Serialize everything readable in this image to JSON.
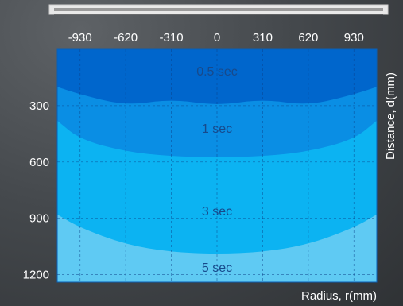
{
  "fixture_icon": "ceiling-lamp-fixture-icon",
  "chart_data": {
    "type": "area",
    "title": "",
    "xlabel": "Radius, r(mm)",
    "ylabel": "Distance, d(mm)",
    "x_ticks": [
      -930,
      -620,
      -310,
      0,
      310,
      620,
      930
    ],
    "y_ticks": [
      300,
      600,
      900,
      1200
    ],
    "xlim": [
      -1085,
      1085
    ],
    "ylim": [
      0,
      1240
    ],
    "y_inverted": true,
    "x_axis_position": "top",
    "y_axis_title_position": "right",
    "grid": true,
    "series": [
      {
        "name": "0.5 sec",
        "color": "#0066cc",
        "label_at": {
          "x": 0,
          "y": 115
        },
        "boundary": {
          "x": [
            -1085,
            -930,
            -620,
            -310,
            0,
            310,
            620,
            930,
            1085
          ],
          "y": [
            200,
            240,
            300,
            265,
            300,
            265,
            300,
            240,
            200
          ]
        }
      },
      {
        "name": "1 sec",
        "color": "#0a8ee4",
        "label_at": {
          "x": 0,
          "y": 420
        },
        "boundary": {
          "x": [
            -1085,
            -930,
            -620,
            -310,
            0,
            310,
            620,
            930,
            1085
          ],
          "y": [
            380,
            480,
            545,
            570,
            575,
            570,
            545,
            480,
            380
          ]
        }
      },
      {
        "name": "3 sec",
        "color": "#0cb3f2",
        "label_at": {
          "x": 0,
          "y": 860
        },
        "boundary": {
          "x": [
            -1085,
            -930,
            -620,
            -310,
            0,
            310,
            620,
            930,
            1085
          ],
          "y": [
            880,
            950,
            1040,
            1080,
            1090,
            1080,
            1040,
            950,
            880
          ]
        }
      },
      {
        "name": "5 sec",
        "color": "#5fcaf3",
        "label_at": {
          "x": 0,
          "y": 1160
        },
        "boundary": {
          "x": [
            -1085,
            1085
          ],
          "y": [
            1240,
            1240
          ]
        }
      }
    ]
  }
}
